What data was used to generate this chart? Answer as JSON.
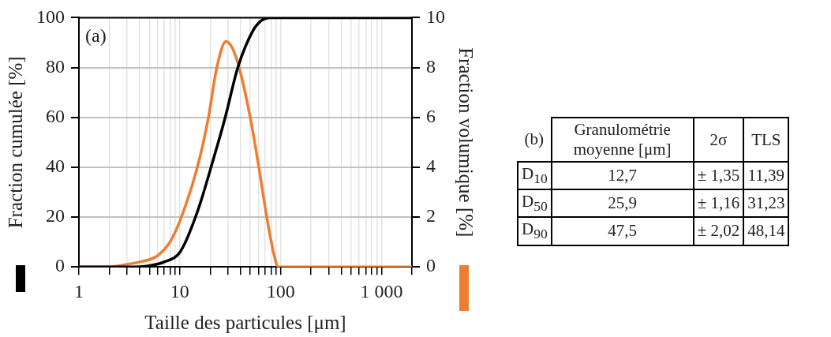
{
  "chart_data": [
    {
      "type": "line",
      "xlabel": "Taille des particules [μm]",
      "ylabel": "Fraction cumulée [%]",
      "y2label": "Fraction volumique [%]",
      "annotations": [
        "(a)"
      ],
      "log": "x",
      "grid": true,
      "marker": "none",
      "line_style": "solid",
      "xlim": [
        1,
        2000
      ],
      "xticks": [
        1,
        {
          "value": 2,
          "label": null
        },
        {
          "value": 3,
          "label": null
        },
        {
          "value": 4,
          "label": null
        },
        {
          "value": 5,
          "label": null
        },
        {
          "value": 6,
          "label": null
        },
        {
          "value": 7,
          "label": null
        },
        {
          "value": 8,
          "label": null
        },
        {
          "value": 9,
          "label": null
        },
        10,
        {
          "value": 20,
          "label": null
        },
        {
          "value": 30,
          "label": null
        },
        {
          "value": 40,
          "label": null
        },
        {
          "value": 50,
          "label": null
        },
        {
          "value": 60,
          "label": null
        },
        {
          "value": 70,
          "label": null
        },
        {
          "value": 80,
          "label": null
        },
        {
          "value": 90,
          "label": null
        },
        100,
        {
          "value": 200,
          "label": null
        },
        {
          "value": 300,
          "label": null
        },
        {
          "value": 400,
          "label": null
        },
        {
          "value": 500,
          "label": null
        },
        {
          "value": 600,
          "label": null
        },
        {
          "value": 700,
          "label": null
        },
        {
          "value": 800,
          "label": null
        },
        {
          "value": 900,
          "label": null
        },
        {
          "value": 1000,
          "label": "1 000"
        },
        {
          "value": 2000,
          "label": null
        }
      ],
      "ylim": [
        0,
        100
      ],
      "yticks": [
        0,
        20,
        40,
        60,
        80,
        100
      ],
      "y2lim": [
        0,
        10
      ],
      "y2ticks": [
        0,
        2,
        4,
        6,
        8,
        10
      ],
      "series": [
        {
          "color": "#000000",
          "x": [
            1,
            3,
            5,
            7,
            10.1,
            14.9,
            21.8,
            28.2,
            37.6,
            53.5,
            65,
            78,
            2000
          ],
          "values": [
            0,
            0,
            0.5,
            2,
            6.1,
            22,
            44,
            60,
            80,
            95,
            99,
            100,
            100
          ]
        },
        {
          "color": "#ed7d31",
          "axis": "y2",
          "x": [
            1,
            2,
            3,
            4,
            5.7,
            7,
            8,
            10.1,
            14.9,
            19.2,
            23.2,
            28.7,
            33,
            38.9,
            50,
            60.8,
            73.6,
            86.5,
            94.5,
            2000
          ],
          "values": [
            0,
            0,
            0.1,
            0.2,
            0.39,
            0.7,
            1,
            1.88,
            3.99,
            5.98,
            7.97,
            9.05,
            8.8,
            7.97,
            5.98,
            3.99,
            1.88,
            0.44,
            0,
            0
          ]
        }
      ]
    },
    {
      "type": "other",
      "annotations": [
        "(b)"
      ],
      "categories": [
        "Granulométrie moyenne [μm]",
        "2σ",
        "TLS"
      ],
      "y_categories": [
        "D$_{10}$",
        "D$_{50}$",
        "D$_{90}$"
      ],
      "cell_labels": [
        [
          "12,7",
          "± 1,35",
          "11,39"
        ],
        [
          "25,9",
          "± 1,16",
          "31,23"
        ],
        [
          "47,5",
          "± 2,02",
          "48,14"
        ]
      ]
    }
  ]
}
